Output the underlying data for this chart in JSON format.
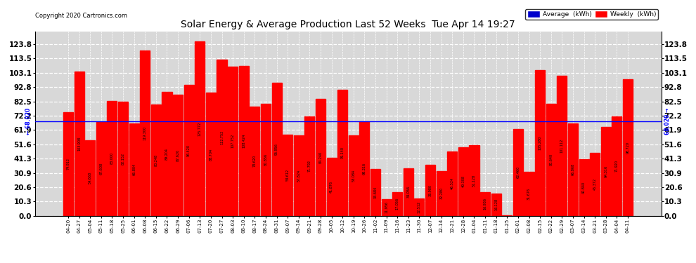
{
  "title": "Solar Energy & Average Production Last 52 Weeks  Tue Apr 14 19:27",
  "copyright": "Copyright 2020 Cartronics.com",
  "avg_line_value": 68.02,
  "bar_color": "#ff0000",
  "avg_line_color": "#0000ff",
  "background_color": "#ffffff",
  "plot_bg_color": "#d8d8d8",
  "grid_color": "#ffffff",
  "ytick_values": [
    0.0,
    10.3,
    20.6,
    30.9,
    41.3,
    51.6,
    61.9,
    72.2,
    82.5,
    92.8,
    103.1,
    113.5,
    123.8
  ],
  "ymax": 133.0,
  "legend_avg_color": "#0000cc",
  "legend_weekly_color": "#ff0000",
  "title_fontsize": 10,
  "bar_label_fontsize": 3.5,
  "ytick_fontsize": 7.5,
  "xtick_fontsize": 5.0,
  "categories": [
    "04-20",
    "04-27",
    "05-04",
    "05-11",
    "05-18",
    "05-25",
    "06-01",
    "06-08",
    "06-15",
    "06-22",
    "06-29",
    "07-06",
    "07-13",
    "07-20",
    "07-27",
    "08-03",
    "08-10",
    "08-17",
    "08-24",
    "08-31",
    "09-07",
    "09-14",
    "09-21",
    "09-28",
    "10-05",
    "10-12",
    "10-19",
    "10-26",
    "11-02",
    "11-09",
    "11-16",
    "11-23",
    "11-30",
    "12-07",
    "12-14",
    "12-21",
    "12-28",
    "01-04",
    "01-11",
    "01-18",
    "01-25",
    "02-01",
    "02-08",
    "02-15",
    "02-22",
    "02-29",
    "03-07",
    "03-14",
    "03-21",
    "03-28",
    "04-04",
    "04-11"
  ],
  "values": [
    74.912,
    103.908,
    54.668,
    67.608,
    83.0,
    82.152,
    66.804,
    119.3,
    80.248,
    89.204,
    87.62,
    94.42,
    125.772,
    88.704,
    112.752,
    107.752,
    108.424,
    78.62,
    80.856,
    95.956,
    58.612,
    57.824,
    71.792,
    84.24,
    41.876,
    91.14,
    58.084,
    68.316,
    33.684,
    11.956,
    17.056,
    34.056,
    12.512,
    36.98,
    32.28,
    46.524,
    49.308,
    51.128,
    16.936,
    16.128,
    0.096,
    62.46,
    31.676,
    105.28,
    80.64,
    101.112,
    66.868,
    40.84,
    45.372,
    64.316,
    71.92,
    98.72
  ]
}
